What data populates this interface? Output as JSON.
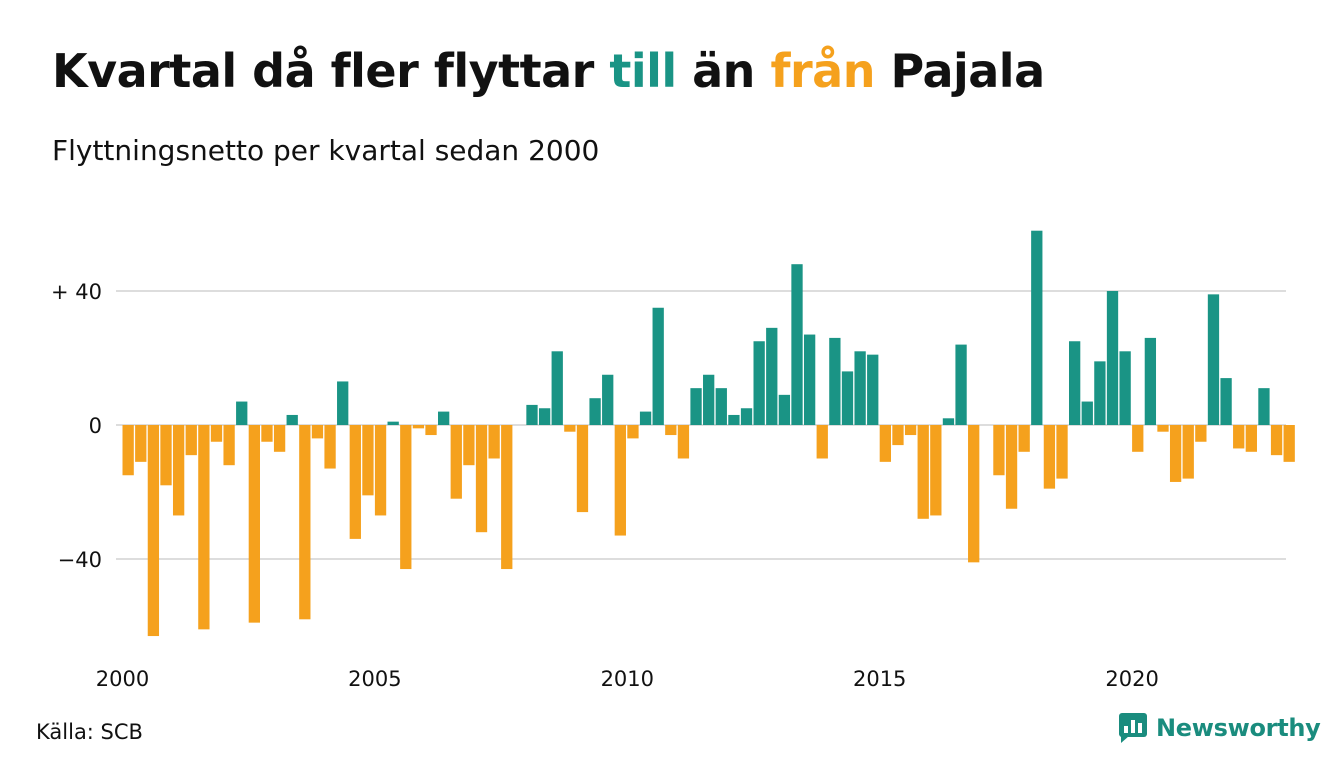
{
  "title": {
    "part1": "Kvartal då fler flyttar ",
    "till": "till",
    "part2": " än ",
    "fran": "från",
    "part3": " Pajala"
  },
  "subtitle": "Flyttningsnetto per kvartal sedan 2000",
  "source": "Källa: SCB",
  "logo": {
    "text": "Newsworthy",
    "icon": "newsworthy-chat-bars-icon"
  },
  "colors": {
    "positive": "#1a9485",
    "negative": "#f5a11d",
    "grid": "#dddddd",
    "logo": "#1a8c7e"
  },
  "chart_data": {
    "type": "bar",
    "x_start": "2000 Q1",
    "x_ticks": [
      {
        "label": "2000",
        "x": 2000
      },
      {
        "label": "2005",
        "x": 2005
      },
      {
        "label": "2010",
        "x": 2010
      },
      {
        "label": "2015",
        "x": 2015
      },
      {
        "label": "2020",
        "x": 2020
      }
    ],
    "y_ticks": [
      {
        "label": "+ 40",
        "y": 40
      },
      {
        "label": "0",
        "y": 0
      },
      {
        "label": "−40",
        "y": -40
      }
    ],
    "ylim": [
      -64,
      60
    ],
    "grid": true,
    "values": [
      -15,
      -11,
      -63,
      -18,
      -27,
      -9,
      -61,
      -5,
      -12,
      7,
      -59,
      -5,
      -8,
      3,
      -58,
      -4,
      -13,
      13,
      -34,
      -21,
      -27,
      1,
      -43,
      -1,
      -3,
      4,
      -22,
      -12,
      -32,
      -10,
      -43,
      0,
      6,
      5,
      22,
      -2,
      -26,
      8,
      15,
      -33,
      -4,
      4,
      35,
      -3,
      -10,
      11,
      15,
      11,
      3,
      5,
      25,
      29,
      9,
      48,
      27,
      -10,
      26,
      16,
      22,
      21,
      -11,
      -6,
      -3,
      -28,
      -27,
      2,
      24,
      -41,
      0,
      -15,
      -25,
      -8,
      58,
      -19,
      -16,
      25,
      7,
      19,
      40,
      22,
      -8,
      26,
      -2,
      -17,
      -16,
      -5,
      39,
      14,
      -7,
      -8,
      11,
      -9,
      -11
    ]
  }
}
